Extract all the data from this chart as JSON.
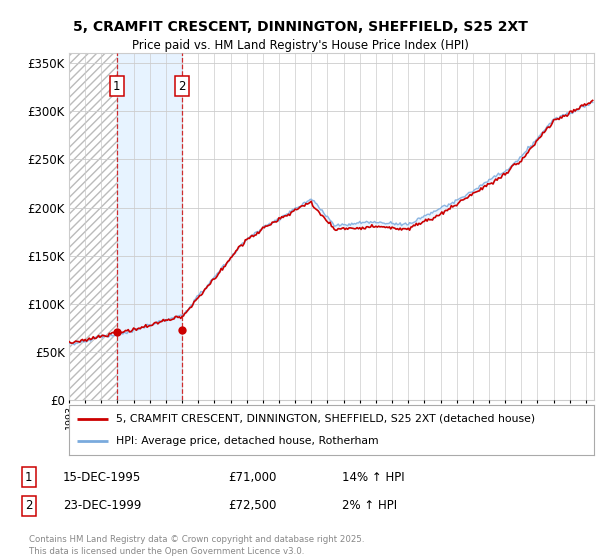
{
  "title_line1": "5, CRAMFIT CRESCENT, DINNINGTON, SHEFFIELD, S25 2XT",
  "title_line2": "Price paid vs. HM Land Registry's House Price Index (HPI)",
  "background_color": "#ffffff",
  "grid_color": "#cccccc",
  "red_line_color": "#cc0000",
  "blue_line_color": "#7aaadd",
  "fill_color": "#ddeeff",
  "hatch_color": "#cccccc",
  "legend_label_red": "5, CRAMFIT CRESCENT, DINNINGTON, SHEFFIELD, S25 2XT (detached house)",
  "legend_label_blue": "HPI: Average price, detached house, Rotherham",
  "yticks": [
    0,
    50000,
    100000,
    150000,
    200000,
    250000,
    300000,
    350000
  ],
  "ytick_labels": [
    "£0",
    "£50K",
    "£100K",
    "£150K",
    "£200K",
    "£250K",
    "£300K",
    "£350K"
  ],
  "xmin": 1993.0,
  "xmax": 2025.5,
  "ymin": 0,
  "ymax": 360000,
  "marker1_x": 1995.96,
  "marker1_y": 71000,
  "marker2_x": 1999.98,
  "marker2_y": 72500,
  "transaction1_date": "15-DEC-1995",
  "transaction1_price": "£71,000",
  "transaction1_hpi": "14% ↑ HPI",
  "transaction2_date": "23-DEC-1999",
  "transaction2_price": "£72,500",
  "transaction2_hpi": "2% ↑ HPI",
  "copyright_text": "Contains HM Land Registry data © Crown copyright and database right 2025.\nThis data is licensed under the Open Government Licence v3.0.",
  "footnote_color": "#888888"
}
